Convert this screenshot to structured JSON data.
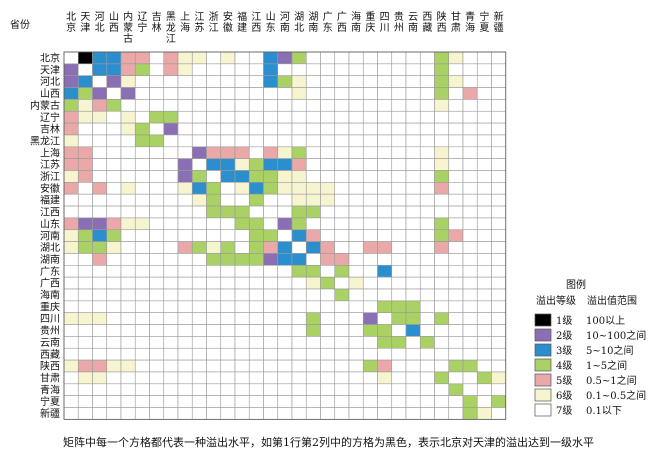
{
  "chart_data": {
    "type": "heatmap",
    "corner_label": "省份",
    "provinces": [
      "北京",
      "天津",
      "河北",
      "山西",
      "内蒙古",
      "辽宁",
      "吉林",
      "黑龙江",
      "上海",
      "江苏",
      "浙江",
      "安徽",
      "福建",
      "江西",
      "山东",
      "河南",
      "湖北",
      "湖南",
      "广东",
      "广西",
      "海南",
      "重庆",
      "四川",
      "贵州",
      "云南",
      "西藏",
      "陕西",
      "甘肃",
      "青海",
      "宁夏",
      "新疆"
    ],
    "row_labels": [
      "北京",
      "天津",
      "河北",
      "山西",
      "内蒙古",
      "辽宁",
      "吉林",
      "黑龙江",
      "上海",
      "江苏",
      "浙江",
      "安徽",
      "福建",
      "江西",
      "山东",
      "河南",
      "湖北",
      "湖南",
      "广东",
      "广西",
      "海南",
      "重庆",
      "四川",
      "贵州",
      "云南",
      "西藏",
      "陕西",
      "甘肃",
      "青海",
      "宁夏",
      "新疆"
    ],
    "col_labels": [
      "北京",
      "天津",
      "河北",
      "山西",
      "内蒙古",
      "辽宁",
      "吉林",
      "黑龙江",
      "上海",
      "江苏",
      "浙江",
      "安徽",
      "福建",
      "江西",
      "山东",
      "河南",
      "湖北",
      "湖南",
      "广东",
      "广西",
      "海南",
      "重庆",
      "四川",
      "贵州",
      "云南",
      "西藏",
      "陕西",
      "甘肃",
      "青海",
      "宁夏",
      "新疆"
    ],
    "levels": [
      [
        0,
        1,
        3,
        3,
        5,
        5,
        0,
        5,
        6,
        6,
        0,
        6,
        0,
        0,
        3,
        2,
        4,
        0,
        0,
        0,
        0,
        0,
        0,
        0,
        0,
        0,
        4,
        6,
        0,
        0,
        0
      ],
      [
        2,
        0,
        3,
        3,
        5,
        4,
        0,
        5,
        6,
        0,
        0,
        0,
        0,
        0,
        3,
        0,
        0,
        0,
        0,
        0,
        0,
        0,
        0,
        0,
        0,
        0,
        4,
        0,
        0,
        0,
        0
      ],
      [
        2,
        3,
        0,
        2,
        6,
        0,
        0,
        0,
        0,
        0,
        0,
        0,
        0,
        0,
        3,
        4,
        6,
        0,
        0,
        0,
        0,
        0,
        0,
        0,
        0,
        0,
        4,
        6,
        0,
        0,
        0
      ],
      [
        3,
        4,
        2,
        0,
        2,
        0,
        0,
        0,
        0,
        0,
        0,
        0,
        0,
        0,
        0,
        0,
        6,
        0,
        0,
        0,
        0,
        0,
        0,
        0,
        0,
        0,
        4,
        0,
        5,
        0,
        0
      ],
      [
        4,
        6,
        5,
        4,
        0,
        0,
        0,
        0,
        0,
        0,
        0,
        0,
        0,
        0,
        0,
        0,
        0,
        0,
        0,
        0,
        0,
        0,
        0,
        0,
        0,
        0,
        6,
        0,
        0,
        0,
        0
      ],
      [
        5,
        6,
        6,
        0,
        6,
        0,
        4,
        4,
        0,
        0,
        0,
        0,
        0,
        0,
        0,
        0,
        0,
        0,
        0,
        0,
        0,
        0,
        0,
        0,
        0,
        0,
        0,
        0,
        0,
        0,
        0
      ],
      [
        5,
        0,
        0,
        0,
        6,
        4,
        0,
        2,
        0,
        0,
        0,
        0,
        0,
        0,
        0,
        0,
        0,
        0,
        0,
        0,
        0,
        0,
        0,
        0,
        0,
        0,
        0,
        0,
        0,
        0,
        0
      ],
      [
        6,
        0,
        0,
        0,
        0,
        4,
        4,
        0,
        0,
        0,
        0,
        0,
        0,
        0,
        0,
        0,
        0,
        0,
        0,
        0,
        0,
        0,
        0,
        0,
        0,
        0,
        0,
        0,
        0,
        0,
        0
      ],
      [
        5,
        5,
        0,
        0,
        0,
        0,
        0,
        0,
        0,
        2,
        5,
        5,
        5,
        0,
        5,
        6,
        4,
        0,
        0,
        0,
        0,
        0,
        0,
        0,
        0,
        0,
        6,
        0,
        0,
        0,
        0
      ],
      [
        5,
        5,
        0,
        0,
        0,
        0,
        0,
        0,
        2,
        0,
        3,
        3,
        6,
        4,
        3,
        3,
        5,
        0,
        0,
        0,
        0,
        0,
        0,
        0,
        0,
        0,
        6,
        0,
        0,
        0,
        0
      ],
      [
        6,
        5,
        0,
        0,
        0,
        0,
        0,
        0,
        2,
        4,
        0,
        3,
        3,
        4,
        4,
        6,
        6,
        0,
        0,
        0,
        0,
        0,
        0,
        0,
        0,
        0,
        4,
        0,
        0,
        0,
        0
      ],
      [
        5,
        0,
        5,
        0,
        6,
        0,
        0,
        0,
        6,
        3,
        4,
        0,
        6,
        3,
        4,
        6,
        6,
        6,
        6,
        0,
        0,
        0,
        0,
        0,
        0,
        0,
        5,
        0,
        0,
        0,
        0
      ],
      [
        0,
        0,
        0,
        0,
        0,
        0,
        0,
        0,
        0,
        6,
        4,
        0,
        0,
        4,
        0,
        0,
        6,
        6,
        6,
        0,
        0,
        0,
        0,
        0,
        0,
        0,
        0,
        0,
        0,
        0,
        0
      ],
      [
        0,
        0,
        0,
        0,
        0,
        0,
        0,
        0,
        0,
        0,
        4,
        4,
        4,
        0,
        0,
        0,
        4,
        4,
        0,
        0,
        0,
        0,
        0,
        0,
        0,
        0,
        0,
        0,
        0,
        0,
        0
      ],
      [
        5,
        2,
        2,
        5,
        6,
        6,
        0,
        0,
        0,
        0,
        0,
        0,
        4,
        4,
        0,
        2,
        4,
        0,
        0,
        0,
        0,
        0,
        0,
        0,
        0,
        0,
        4,
        0,
        0,
        0,
        0
      ],
      [
        6,
        4,
        3,
        4,
        0,
        0,
        0,
        0,
        0,
        0,
        0,
        0,
        0,
        4,
        4,
        0,
        3,
        5,
        0,
        0,
        0,
        0,
        0,
        0,
        0,
        0,
        4,
        5,
        0,
        0,
        0
      ],
      [
        6,
        4,
        4,
        6,
        0,
        0,
        0,
        0,
        5,
        4,
        6,
        4,
        0,
        4,
        5,
        3,
        0,
        3,
        5,
        0,
        0,
        5,
        5,
        0,
        0,
        0,
        5,
        0,
        0,
        0,
        0
      ],
      [
        0,
        0,
        5,
        0,
        0,
        0,
        0,
        0,
        0,
        0,
        4,
        4,
        4,
        4,
        2,
        3,
        3,
        0,
        5,
        5,
        0,
        0,
        0,
        0,
        0,
        0,
        0,
        0,
        0,
        0,
        0
      ],
      [
        0,
        0,
        0,
        0,
        0,
        0,
        0,
        0,
        0,
        0,
        0,
        0,
        0,
        0,
        0,
        0,
        4,
        4,
        0,
        4,
        0,
        0,
        3,
        0,
        0,
        0,
        0,
        0,
        0,
        0,
        0
      ],
      [
        0,
        0,
        0,
        0,
        0,
        0,
        0,
        0,
        0,
        0,
        0,
        0,
        0,
        0,
        0,
        0,
        0,
        6,
        4,
        0,
        6,
        0,
        0,
        0,
        0,
        0,
        0,
        0,
        0,
        0,
        0
      ],
      [
        0,
        0,
        0,
        0,
        0,
        0,
        0,
        0,
        0,
        0,
        0,
        0,
        0,
        0,
        0,
        0,
        0,
        0,
        0,
        4,
        0,
        0,
        0,
        0,
        0,
        0,
        0,
        0,
        0,
        0,
        0
      ],
      [
        0,
        0,
        0,
        0,
        0,
        0,
        0,
        0,
        0,
        0,
        0,
        0,
        0,
        0,
        0,
        0,
        0,
        0,
        0,
        0,
        0,
        0,
        4,
        4,
        4,
        0,
        0,
        0,
        0,
        0,
        0
      ],
      [
        6,
        6,
        6,
        0,
        0,
        0,
        0,
        0,
        0,
        0,
        0,
        0,
        0,
        0,
        0,
        0,
        0,
        4,
        0,
        0,
        0,
        2,
        0,
        4,
        4,
        0,
        4,
        0,
        0,
        0,
        0
      ],
      [
        0,
        0,
        0,
        0,
        0,
        0,
        0,
        0,
        0,
        0,
        0,
        0,
        0,
        0,
        0,
        0,
        0,
        4,
        0,
        0,
        0,
        4,
        4,
        0,
        3,
        0,
        0,
        0,
        0,
        0,
        0
      ],
      [
        0,
        0,
        0,
        0,
        0,
        0,
        0,
        0,
        0,
        0,
        0,
        0,
        0,
        0,
        0,
        0,
        0,
        0,
        0,
        0,
        0,
        0,
        4,
        4,
        0,
        4,
        0,
        0,
        0,
        0,
        0
      ],
      [
        0,
        0,
        0,
        0,
        0,
        0,
        0,
        0,
        0,
        0,
        0,
        0,
        0,
        0,
        0,
        0,
        0,
        0,
        0,
        0,
        0,
        0,
        0,
        0,
        0,
        0,
        0,
        0,
        0,
        0,
        0
      ],
      [
        6,
        5,
        5,
        6,
        6,
        0,
        0,
        0,
        0,
        0,
        0,
        0,
        0,
        0,
        0,
        0,
        0,
        0,
        0,
        0,
        0,
        4,
        5,
        0,
        0,
        0,
        0,
        4,
        4,
        0,
        0
      ],
      [
        0,
        6,
        6,
        0,
        0,
        0,
        0,
        0,
        0,
        0,
        0,
        0,
        0,
        0,
        0,
        0,
        0,
        0,
        0,
        0,
        0,
        0,
        6,
        0,
        0,
        0,
        4,
        0,
        0,
        4,
        6
      ],
      [
        0,
        0,
        0,
        0,
        0,
        0,
        0,
        0,
        0,
        0,
        0,
        0,
        0,
        0,
        0,
        0,
        0,
        0,
        0,
        0,
        0,
        0,
        0,
        0,
        0,
        0,
        0,
        4,
        0,
        0,
        0
      ],
      [
        0,
        0,
        0,
        0,
        0,
        0,
        0,
        0,
        0,
        0,
        0,
        0,
        0,
        0,
        0,
        0,
        0,
        0,
        0,
        0,
        0,
        0,
        0,
        0,
        0,
        0,
        0,
        0,
        4,
        0,
        4
      ],
      [
        0,
        0,
        0,
        0,
        0,
        0,
        0,
        0,
        0,
        0,
        0,
        0,
        0,
        0,
        0,
        0,
        0,
        0,
        0,
        0,
        0,
        0,
        0,
        0,
        0,
        0,
        0,
        0,
        4,
        6,
        0
      ]
    ],
    "legend": {
      "title": "图例",
      "header_level": "溢出等级",
      "header_range": "溢出值范围",
      "items": [
        {
          "level": "1级",
          "range": "100以上",
          "color": "#000000"
        },
        {
          "level": "2级",
          "range": "10~100之间",
          "color": "#8b6fb5"
        },
        {
          "level": "3级",
          "range": "5~10之间",
          "color": "#2b8fcf"
        },
        {
          "level": "4级",
          "range": "1~5之间",
          "color": "#a9d163"
        },
        {
          "level": "5级",
          "range": "0.5~1之间",
          "color": "#eaa8a8"
        },
        {
          "level": "6级",
          "range": "0.1~0.5之间",
          "color": "#f7f5d0"
        },
        {
          "level": "7级",
          "range": "0.1以下",
          "color": "#ffffff"
        }
      ]
    }
  },
  "caption": "矩阵中每一个方格都代表一种溢出水平，如第1行第2列中的方格为黑色，表示北京对天津的溢出达到一级水平"
}
